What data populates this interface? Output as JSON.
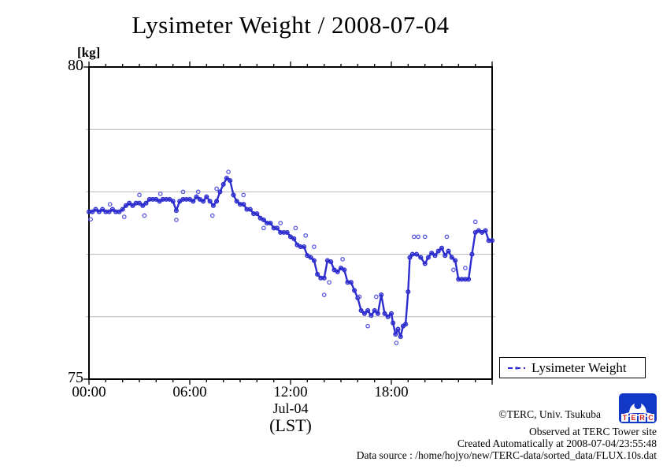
{
  "title": "Lysimeter Weight / 2008-07-04",
  "y_axis": {
    "unit_label": "[kg]",
    "max_label": "80",
    "min_label": "75",
    "gridlines": [
      76,
      77,
      78,
      79
    ]
  },
  "x_axis": {
    "tick_labels": [
      "00:00",
      "06:00",
      "12:00",
      "18:00"
    ],
    "date_label": "Jul-04",
    "tz_label": "(LST)"
  },
  "legend": {
    "label": "Lysimeter Weight"
  },
  "annotations": {
    "copyright": "©TERC, Univ. Tsukuba",
    "observed": "Observed at TERC Tower site",
    "created": "Created Automatically at 2008-07-04/23:55:48",
    "source": "Data source : /home/hojyo/new/TERC-data/sorted_data/FLUX.10s.dat"
  },
  "logo": {
    "letters": [
      "T",
      "E",
      "R",
      "C"
    ],
    "bg_color": "#1238c8",
    "letter_color": "#cc2020"
  },
  "colors": {
    "line": "#2d2dcf",
    "marker": "#5c5cdd",
    "grid": "#b8b8b8",
    "axis": "#000000"
  },
  "chart_data": {
    "type": "line",
    "title": "Lysimeter Weight / 2008-07-04",
    "xlabel": "Jul-04 (LST)",
    "ylabel": "[kg]",
    "xlim": [
      0,
      24
    ],
    "ylim": [
      75,
      80
    ],
    "x_unit": "hours (LST)",
    "y_tick_labels_shown": [
      75,
      80
    ],
    "gridlines_y": [
      76,
      77,
      78,
      79
    ],
    "x_minor_tick_hours": 1,
    "x_major_tick_hours": 6,
    "legend_position": "outside-bottom-right",
    "series": [
      {
        "name": "Lysimeter Weight",
        "x": [
          0,
          0.2,
          0.4,
          0.6,
          0.8,
          1.0,
          1.2,
          1.4,
          1.6,
          1.8,
          2.0,
          2.2,
          2.4,
          2.6,
          2.8,
          3.0,
          3.2,
          3.4,
          3.6,
          3.8,
          4.0,
          4.2,
          4.4,
          4.6,
          4.8,
          5.0,
          5.2,
          5.4,
          5.6,
          5.8,
          6.0,
          6.2,
          6.4,
          6.6,
          6.8,
          7.0,
          7.2,
          7.4,
          7.6,
          7.8,
          8.0,
          8.2,
          8.4,
          8.6,
          8.8,
          9.0,
          9.2,
          9.4,
          9.6,
          9.8,
          10.0,
          10.2,
          10.4,
          10.6,
          10.8,
          11.0,
          11.2,
          11.4,
          11.6,
          11.8,
          12.0,
          12.2,
          12.4,
          12.6,
          12.8,
          13.0,
          13.2,
          13.4,
          13.6,
          13.8,
          14.0,
          14.2,
          14.4,
          14.6,
          14.8,
          15.0,
          15.2,
          15.4,
          15.6,
          15.8,
          16.0,
          16.2,
          16.4,
          16.6,
          16.8,
          17.0,
          17.2,
          17.4,
          17.6,
          17.8,
          18.0,
          18.1,
          18.25,
          18.4,
          18.55,
          18.7,
          18.85,
          19.0,
          19.1,
          19.25,
          19.5,
          19.75,
          20.0,
          20.2,
          20.4,
          20.6,
          20.8,
          21.0,
          21.2,
          21.4,
          21.6,
          21.8,
          22.0,
          22.2,
          22.4,
          22.6,
          22.8,
          23.0,
          23.2,
          23.4,
          23.6,
          23.8,
          24.0
        ],
        "y": [
          77.68,
          77.68,
          77.72,
          77.68,
          77.72,
          77.68,
          77.68,
          77.72,
          77.68,
          77.68,
          77.72,
          77.78,
          77.82,
          77.78,
          77.82,
          77.82,
          77.78,
          77.82,
          77.88,
          77.88,
          77.88,
          77.85,
          77.88,
          77.88,
          77.88,
          77.85,
          77.7,
          77.85,
          77.88,
          77.88,
          77.88,
          77.85,
          77.92,
          77.88,
          77.85,
          77.92,
          77.85,
          77.78,
          77.85,
          78.0,
          78.12,
          78.22,
          78.18,
          77.95,
          77.85,
          77.8,
          77.8,
          77.72,
          77.72,
          77.65,
          77.65,
          77.58,
          77.55,
          77.5,
          77.5,
          77.42,
          77.42,
          77.35,
          77.35,
          77.35,
          77.28,
          77.25,
          77.15,
          77.12,
          77.12,
          76.98,
          76.95,
          76.9,
          76.68,
          76.62,
          76.62,
          76.9,
          76.88,
          76.75,
          76.72,
          76.78,
          76.75,
          76.55,
          76.55,
          76.42,
          76.3,
          76.1,
          76.05,
          76.1,
          76.02,
          76.1,
          76.05,
          76.35,
          76.05,
          76.0,
          76.05,
          75.9,
          75.72,
          75.8,
          75.68,
          75.85,
          75.88,
          76.4,
          76.95,
          77.0,
          77.0,
          76.95,
          76.85,
          76.95,
          77.02,
          76.98,
          77.05,
          77.1,
          76.98,
          77.05,
          76.95,
          76.9,
          76.6,
          76.6,
          76.6,
          76.6,
          77.0,
          77.35,
          77.38,
          77.35,
          77.38,
          77.22,
          77.22
        ]
      }
    ],
    "outliers": {
      "x": [
        0.1,
        1.25,
        2.1,
        3.0,
        3.3,
        4.25,
        5.2,
        5.6,
        6.5,
        7.35,
        7.6,
        8.3,
        9.2,
        10.4,
        11.4,
        12.3,
        12.9,
        13.4,
        14.0,
        14.3,
        15.1,
        16.1,
        16.6,
        17.1,
        18.3,
        19.35,
        19.6,
        20.0,
        21.3,
        21.7,
        22.4,
        23.0
      ],
      "y": [
        77.56,
        77.8,
        77.6,
        77.95,
        77.62,
        77.97,
        77.55,
        78.0,
        78.0,
        77.62,
        78.05,
        78.32,
        77.95,
        77.42,
        77.5,
        77.42,
        77.3,
        77.12,
        76.35,
        76.55,
        76.92,
        76.32,
        75.85,
        76.32,
        75.58,
        77.28,
        77.28,
        77.28,
        77.28,
        76.75,
        76.78,
        77.52
      ]
    }
  }
}
